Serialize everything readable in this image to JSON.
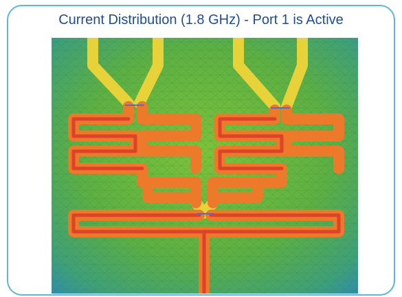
{
  "title": "Current Distribution (1.8 GHz) - Port 1 is Active"
}
